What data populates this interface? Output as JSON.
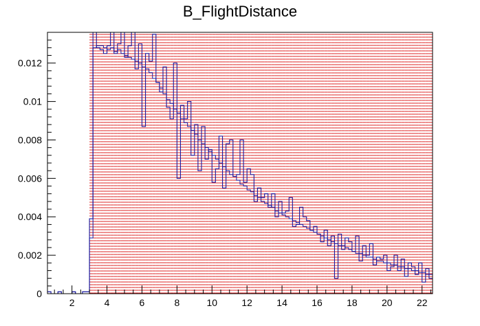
{
  "chart_data": {
    "type": "histogram",
    "title": "B_FlightDistance",
    "xlabel": "",
    "ylabel": "",
    "xlim": [
      0.6,
      22.6
    ],
    "ylim": [
      0,
      0.0136
    ],
    "bin_start": 0.6,
    "bin_width": 0.2,
    "x_ticks": [
      2,
      4,
      6,
      8,
      10,
      12,
      14,
      16,
      18,
      20,
      22
    ],
    "y_ticks": [
      0,
      0.002,
      0.004,
      0.006,
      0.008,
      0.01,
      0.012
    ],
    "y_tick_labels": [
      "0",
      "0.002",
      "0.004",
      "0.006",
      "0.008",
      "0.01",
      "0.012"
    ],
    "grid": false,
    "legend": "none",
    "colors": {
      "filled_fill": "#ffd6d6",
      "filled_hatch": "#dd2222",
      "outline": "#1a1aa0",
      "axis": "#000000"
    },
    "series": [
      {
        "style": "filled-hatched",
        "values": [
          0,
          0,
          0,
          0,
          0,
          0,
          0,
          0,
          0,
          0,
          0,
          0,
          0.0136,
          0.0136,
          0.0136,
          0.0136,
          0.0136,
          0.0136,
          0.0136,
          0.0136,
          0.0136,
          0.0136,
          0.0136,
          0.0136,
          0.0136,
          0.0136,
          0.0136,
          0.0136,
          0.0136,
          0.0136,
          0.0136,
          0.0136,
          0.0136,
          0.0136,
          0.0136,
          0.0136,
          0.0136,
          0.0136,
          0.0136,
          0.0136,
          0.0136,
          0.0136,
          0.0136,
          0.0136,
          0.0136,
          0.0136,
          0.0136,
          0.0136,
          0.0136,
          0.0136,
          0.0136,
          0.0136,
          0.0136,
          0.0136,
          0.0136,
          0.0136,
          0.0136,
          0.0136,
          0.0136,
          0.0136,
          0.0136,
          0.0136,
          0.0136,
          0.0136,
          0.0136,
          0.0136,
          0.0136,
          0.0136,
          0.0136,
          0.0136,
          0.0136,
          0.0136,
          0.0136,
          0.0136,
          0.0136,
          0.0136,
          0.0136,
          0.0136,
          0.0136,
          0.0136,
          0.0136,
          0.0136,
          0.0136,
          0.0136,
          0.0136,
          0.0136,
          0.0136,
          0.0136,
          0.0136,
          0.0136,
          0.0136,
          0.0136,
          0.0136,
          0.0136,
          0.0136,
          0.0136,
          0.0136,
          0.0136,
          0.0136,
          0.0136,
          0.0136,
          0.0136,
          0.0136,
          0.0136,
          0.0136,
          0.0136,
          0.0136,
          0.0136,
          0.0136,
          0.0136
        ]
      },
      {
        "style": "outline",
        "values": [
          0.0001,
          0,
          0,
          0.0001,
          0,
          0,
          0,
          0.0001,
          0,
          0,
          0.0001,
          0.0001,
          0.0029,
          0.0128,
          0.0129,
          0.0129,
          0.0128,
          0.0127,
          0.0128,
          0.0126,
          0.0127,
          0.0125,
          0.0124,
          0.0123,
          0.0122,
          0.0121,
          0.012,
          0.0118,
          0.0117,
          0.0115,
          0.0112,
          0.011,
          0.0107,
          0.0104,
          0.0101,
          0.0099,
          0.0096,
          0.0094,
          0.0091,
          0.0089,
          0.0087,
          0.0085,
          0.0083,
          0.008,
          0.0078,
          0.0076,
          0.0074,
          0.0072,
          0.007,
          0.0068,
          0.0066,
          0.0064,
          0.0062,
          0.0061,
          0.0059,
          0.0057,
          0.0056,
          0.0054,
          0.0053,
          0.0051,
          0.005,
          0.0048,
          0.0047,
          0.0046,
          0.0045,
          0.0043,
          0.0042,
          0.0041,
          0.004,
          0.0039,
          0.0038,
          0.0037,
          0.0036,
          0.0035,
          0.0034,
          0.0033,
          0.0032,
          0.0031,
          0.003,
          0.0029,
          0.0028,
          0.0027,
          0.0026,
          0.0025,
          0.0025,
          0.0024,
          0.0023,
          0.0022,
          0.0021,
          0.0021,
          0.002,
          0.0019,
          0.0019,
          0.0018,
          0.0017,
          0.0017,
          0.0016,
          0.0016,
          0.0015,
          0.0015,
          0.0014,
          0.0014,
          0.0013,
          0.0013,
          0.0012,
          0.0012,
          0.0011,
          0.0011,
          0.001,
          0.001
        ]
      },
      {
        "style": "outline-jagged",
        "values": [
          0.0001,
          0,
          0,
          0.0001,
          0,
          0,
          0,
          0.0001,
          0,
          0,
          0.0001,
          0.0001,
          0.0039,
          0.014,
          0.0128,
          0.0127,
          0.0125,
          0.0129,
          0.0138,
          0.0125,
          0.013,
          0.014,
          0.0123,
          0.0129,
          0.0136,
          0.0117,
          0.013,
          0.0087,
          0.0125,
          0.0121,
          0.0135,
          0.011,
          0.0105,
          0.0118,
          0.0097,
          0.0091,
          0.012,
          0.006,
          0.0098,
          0.0091,
          0.01,
          0.0072,
          0.0088,
          0.0064,
          0.0087,
          0.007,
          0.0075,
          0.0058,
          0.0065,
          0.0082,
          0.0055,
          0.0078,
          0.008,
          0.0061,
          0.0062,
          0.008,
          0.0058,
          0.0065,
          0.0062,
          0.0048,
          0.0055,
          0.005,
          0.0052,
          0.0045,
          0.0052,
          0.004,
          0.0048,
          0.0042,
          0.0043,
          0.005,
          0.0035,
          0.0036,
          0.0045,
          0.004,
          0.0038,
          0.0033,
          0.0035,
          0.0031,
          0.0027,
          0.0033,
          0.0025,
          0.003,
          0.0008,
          0.0031,
          0.0023,
          0.0029,
          0.0027,
          0.0022,
          0.003,
          0.0017,
          0.0025,
          0.002,
          0.0026,
          0.0015,
          0.0019,
          0.0018,
          0.002,
          0.0012,
          0.0014,
          0.002,
          0.0012,
          0.0018,
          0.0009,
          0.0016,
          0.0014,
          0.001,
          0.0016,
          0.0006,
          0.0013,
          0.0008
        ]
      }
    ]
  }
}
